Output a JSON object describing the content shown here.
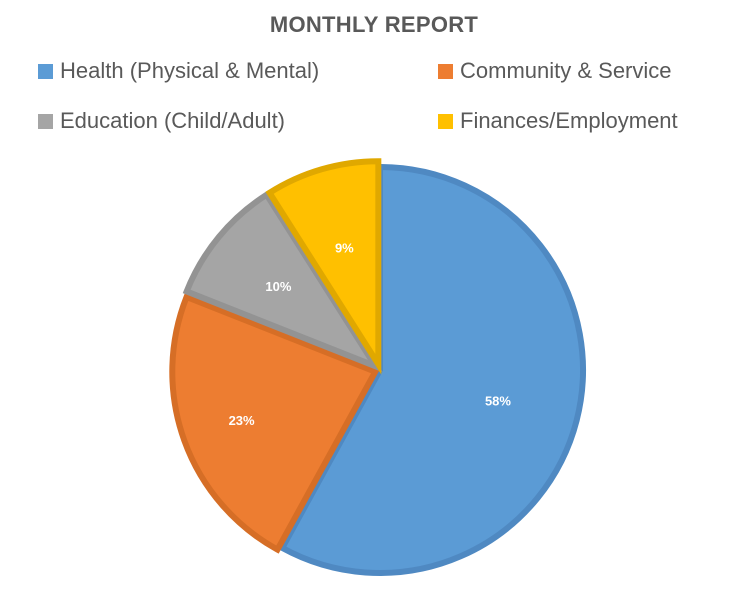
{
  "chart_data": {
    "type": "pie",
    "title": "MONTHLY REPORT",
    "legend_position": "top",
    "categories": [
      "Health (Physical & Mental)",
      "Community & Service",
      "Education (Child/Adult)",
      "Finances/Employment"
    ],
    "values": [
      58,
      23,
      10,
      9
    ],
    "labels": [
      "58%",
      "23%",
      "10%",
      "9%"
    ],
    "colors": [
      "#5B9BD5",
      "#ED7D31",
      "#A5A5A5",
      "#FFC000"
    ],
    "border_colors": [
      "#4F89C2",
      "#D66E26",
      "#939393",
      "#E0A800"
    ]
  }
}
